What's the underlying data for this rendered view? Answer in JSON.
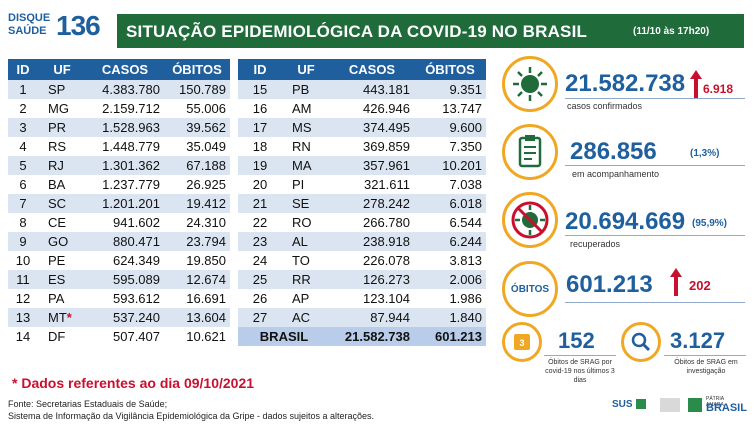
{
  "logo": {
    "top": "DISQUE",
    "bottom": "SAÚDE",
    "number": "136"
  },
  "header": {
    "title": "SITUAÇÃO EPIDEMIOLÓGICA DA COVID-19 NO BRASIL",
    "date": "(11/10 às 17h20)"
  },
  "table_headers": [
    "ID",
    "UF",
    "CASOS",
    "ÓBITOS"
  ],
  "table_left": [
    {
      "id": "1",
      "uf": "SP",
      "casos": "4.383.780",
      "obitos": "150.789"
    },
    {
      "id": "2",
      "uf": "MG",
      "casos": "2.159.712",
      "obitos": "55.006"
    },
    {
      "id": "3",
      "uf": "PR",
      "casos": "1.528.963",
      "obitos": "39.562"
    },
    {
      "id": "4",
      "uf": "RS",
      "casos": "1.448.779",
      "obitos": "35.049"
    },
    {
      "id": "5",
      "uf": "RJ",
      "casos": "1.301.362",
      "obitos": "67.188"
    },
    {
      "id": "6",
      "uf": "BA",
      "casos": "1.237.779",
      "obitos": "26.925"
    },
    {
      "id": "7",
      "uf": "SC",
      "casos": "1.201.201",
      "obitos": "19.412"
    },
    {
      "id": "8",
      "uf": "CE",
      "casos": "941.602",
      "obitos": "24.310"
    },
    {
      "id": "9",
      "uf": "GO",
      "casos": "880.471",
      "obitos": "23.794"
    },
    {
      "id": "10",
      "uf": "PE",
      "casos": "624.349",
      "obitos": "19.850"
    },
    {
      "id": "11",
      "uf": "ES",
      "casos": "595.089",
      "obitos": "12.674"
    },
    {
      "id": "12",
      "uf": "PA",
      "casos": "593.612",
      "obitos": "16.691"
    },
    {
      "id": "13",
      "uf": "MT",
      "casos": "537.240",
      "obitos": "13.604"
    },
    {
      "id": "14",
      "uf": "DF",
      "casos": "507.407",
      "obitos": "10.621"
    }
  ],
  "table_right": [
    {
      "id": "15",
      "uf": "PB",
      "casos": "443.181",
      "obitos": "9.351"
    },
    {
      "id": "16",
      "uf": "AM",
      "casos": "426.946",
      "obitos": "13.747"
    },
    {
      "id": "17",
      "uf": "MS",
      "casos": "374.495",
      "obitos": "9.600"
    },
    {
      "id": "18",
      "uf": "RN",
      "casos": "369.859",
      "obitos": "7.350"
    },
    {
      "id": "19",
      "uf": "MA",
      "casos": "357.961",
      "obitos": "10.201"
    },
    {
      "id": "20",
      "uf": "PI",
      "casos": "321.611",
      "obitos": "7.038"
    },
    {
      "id": "21",
      "uf": "SE",
      "casos": "278.242",
      "obitos": "6.018"
    },
    {
      "id": "22",
      "uf": "RO",
      "casos": "266.780",
      "obitos": "6.544"
    },
    {
      "id": "23",
      "uf": "AL",
      "casos": "238.918",
      "obitos": "6.244"
    },
    {
      "id": "24",
      "uf": "TO",
      "casos": "226.078",
      "obitos": "3.813"
    },
    {
      "id": "25",
      "uf": "RR",
      "casos": "126.273",
      "obitos": "2.006"
    },
    {
      "id": "26",
      "uf": "AP",
      "casos": "123.104",
      "obitos": "1.986"
    },
    {
      "id": "27",
      "uf": "AC",
      "casos": "87.944",
      "obitos": "1.840"
    }
  ],
  "total": {
    "label": "BRASIL",
    "casos": "21.582.738",
    "obitos": "601.213"
  },
  "star": "*",
  "stats": {
    "confirmados": {
      "value": "21.582.738",
      "label": "casos confirmados",
      "delta": "6.918"
    },
    "acompanhamento": {
      "value": "286.856",
      "label": "em acompanhamento",
      "pct": "(1,3%)"
    },
    "recuperados": {
      "value": "20.694.669",
      "label": "recuperados",
      "pct": "(95,9%)"
    },
    "obitos": {
      "tag": "ÓBITOS",
      "value": "601.213",
      "delta": "202"
    },
    "srag_covid": {
      "value": "152",
      "label": "Óbitos de SRAG por covid-19 nos últimos 3 dias"
    },
    "srag_investigacao": {
      "value": "3.127",
      "label": "Óbitos de SRAG em investigação"
    }
  },
  "note": "* Dados referentes ao dia 09/10/2021",
  "fonte_1": "Fonte: Secretarias Estaduais de Saúde;",
  "fonte_2": "Sistema de Informação da Vigilância Epidemiológica da Gripe - dados sujeitos a alterações.",
  "footer": {
    "sus": "SUS",
    "brasil_top": "PÁTRIA AMADA",
    "brasil": "BRASIL"
  },
  "colors": {
    "header_green": "#1f6b3a",
    "table_blue": "#1f5f9e",
    "accent_orange": "#f0a824",
    "alert_red": "#c8102e"
  }
}
